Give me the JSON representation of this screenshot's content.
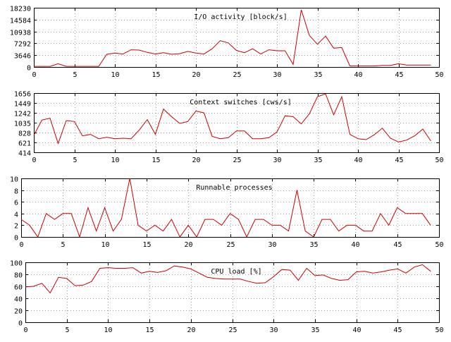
{
  "chart_data": [
    {
      "type": "line",
      "title": "I/O activity [block/s]",
      "xlabel": "",
      "ylabel": "",
      "xlim": [
        0,
        50
      ],
      "ylim": [
        0,
        18230
      ],
      "x_ticks": [
        "0",
        "5",
        "10",
        "15",
        "20",
        "25",
        "30",
        "35",
        "40",
        "45",
        "50"
      ],
      "y_ticks": [
        "0",
        "3646",
        "7292",
        "10938",
        "14584",
        "18230"
      ],
      "grid": true,
      "line_color": "#cc0000",
      "series": [
        {
          "x": [
            0,
            1,
            2,
            3,
            4,
            5,
            6,
            7,
            8,
            9,
            10,
            11,
            12,
            13,
            14,
            15,
            16,
            17,
            18,
            19,
            20,
            21,
            22,
            23,
            24,
            25,
            26,
            27,
            28,
            29,
            30,
            31,
            32,
            33,
            34,
            35,
            36,
            37,
            38,
            39,
            40,
            41,
            42,
            43,
            44,
            45,
            46,
            47,
            48,
            49
          ],
          "values": [
            200,
            200,
            200,
            1000,
            200,
            200,
            200,
            200,
            200,
            3900,
            4300,
            4000,
            5300,
            5200,
            4500,
            4000,
            4400,
            3900,
            4100,
            4800,
            4300,
            4000,
            5600,
            8100,
            7400,
            5100,
            4400,
            5600,
            4000,
            5300,
            5000,
            5000,
            800,
            17600,
            9700,
            7000,
            9500,
            5800,
            6000,
            300,
            300,
            300,
            300,
            500,
            500,
            1000,
            600,
            600,
            600,
            600
          ]
        }
      ]
    },
    {
      "type": "line",
      "title": "Context switches [cws/s]",
      "xlabel": "",
      "ylabel": "",
      "xlim": [
        0,
        50
      ],
      "ylim": [
        414,
        1656
      ],
      "x_ticks": [
        "0",
        "5",
        "10",
        "15",
        "20",
        "25",
        "30",
        "35",
        "40",
        "45",
        "50"
      ],
      "y_ticks": [
        "414",
        "621",
        "828",
        "1035",
        "1242",
        "1449",
        "1656"
      ],
      "grid": true,
      "line_color": "#cc0000",
      "series": [
        {
          "x": [
            0,
            1,
            2,
            3,
            4,
            5,
            6,
            7,
            8,
            9,
            10,
            11,
            12,
            13,
            14,
            15,
            16,
            17,
            18,
            19,
            20,
            21,
            22,
            23,
            24,
            25,
            26,
            27,
            28,
            29,
            30,
            31,
            32,
            33,
            34,
            35,
            36,
            37,
            38,
            39,
            40,
            41,
            42,
            43,
            44,
            45,
            46,
            47,
            48,
            49
          ],
          "values": [
            770,
            1090,
            1130,
            600,
            1080,
            1060,
            760,
            790,
            700,
            730,
            700,
            710,
            700,
            880,
            1100,
            790,
            1320,
            1160,
            1020,
            1060,
            1280,
            1240,
            750,
            700,
            720,
            860,
            860,
            700,
            700,
            720,
            840,
            1180,
            1160,
            1010,
            1220,
            1580,
            1640,
            1200,
            1580,
            790,
            700,
            680,
            780,
            920,
            710,
            630,
            670,
            760,
            900,
            650
          ]
        }
      ]
    },
    {
      "type": "line",
      "title": "Runnable processes",
      "xlabel": "",
      "ylabel": "",
      "xlim": [
        0,
        50
      ],
      "ylim": [
        0,
        10
      ],
      "x_ticks": [
        "0",
        "5",
        "10",
        "15",
        "20",
        "25",
        "30",
        "35",
        "40",
        "45",
        "50"
      ],
      "y_ticks": [
        "0",
        "2",
        "4",
        "6",
        "8",
        "10"
      ],
      "grid": true,
      "line_color": "#cc0000",
      "series": [
        {
          "x": [
            0,
            1,
            2,
            3,
            4,
            5,
            6,
            7,
            8,
            9,
            10,
            11,
            12,
            13,
            14,
            15,
            16,
            17,
            18,
            19,
            20,
            21,
            22,
            23,
            24,
            25,
            26,
            27,
            28,
            29,
            30,
            31,
            32,
            33,
            34,
            35,
            36,
            37,
            38,
            39,
            40,
            41,
            42,
            43,
            44,
            45,
            46,
            47,
            48,
            49
          ],
          "values": [
            3,
            2,
            0,
            4,
            3,
            4,
            4,
            0,
            5,
            1,
            5,
            1,
            3,
            10,
            2,
            1,
            2,
            1,
            3,
            0,
            2,
            0,
            3,
            3,
            2,
            4,
            3,
            0,
            3,
            3,
            2,
            2,
            1,
            8,
            1,
            0,
            3,
            3,
            1,
            2,
            2,
            1,
            1,
            4,
            2,
            5,
            4,
            4,
            4,
            2
          ]
        }
      ]
    },
    {
      "type": "line",
      "title": "CPU load [%]",
      "xlabel": "",
      "ylabel": "",
      "xlim": [
        0,
        50
      ],
      "ylim": [
        0,
        100
      ],
      "x_ticks": [
        "0",
        "5",
        "10",
        "15",
        "20",
        "25",
        "30",
        "35",
        "40",
        "45",
        "50"
      ],
      "y_ticks": [
        "0",
        "20",
        "40",
        "60",
        "80",
        "100"
      ],
      "grid": true,
      "line_color": "#cc0000",
      "series": [
        {
          "x": [
            0,
            1,
            2,
            3,
            4,
            5,
            6,
            7,
            8,
            9,
            10,
            11,
            12,
            13,
            14,
            15,
            16,
            17,
            18,
            19,
            20,
            21,
            22,
            23,
            24,
            25,
            26,
            27,
            28,
            29,
            30,
            31,
            32,
            33,
            34,
            35,
            36,
            37,
            38,
            39,
            40,
            41,
            42,
            43,
            44,
            45,
            46,
            47,
            48,
            49
          ],
          "values": [
            59,
            60,
            65,
            49,
            75,
            73,
            61,
            62,
            68,
            90,
            91,
            90,
            90,
            91,
            82,
            85,
            83,
            86,
            94,
            92,
            89,
            82,
            75,
            73,
            72,
            72,
            72,
            68,
            65,
            66,
            76,
            88,
            87,
            70,
            90,
            78,
            79,
            73,
            70,
            71,
            84,
            85,
            82,
            84,
            87,
            89,
            82,
            92,
            96,
            85
          ]
        }
      ]
    }
  ]
}
